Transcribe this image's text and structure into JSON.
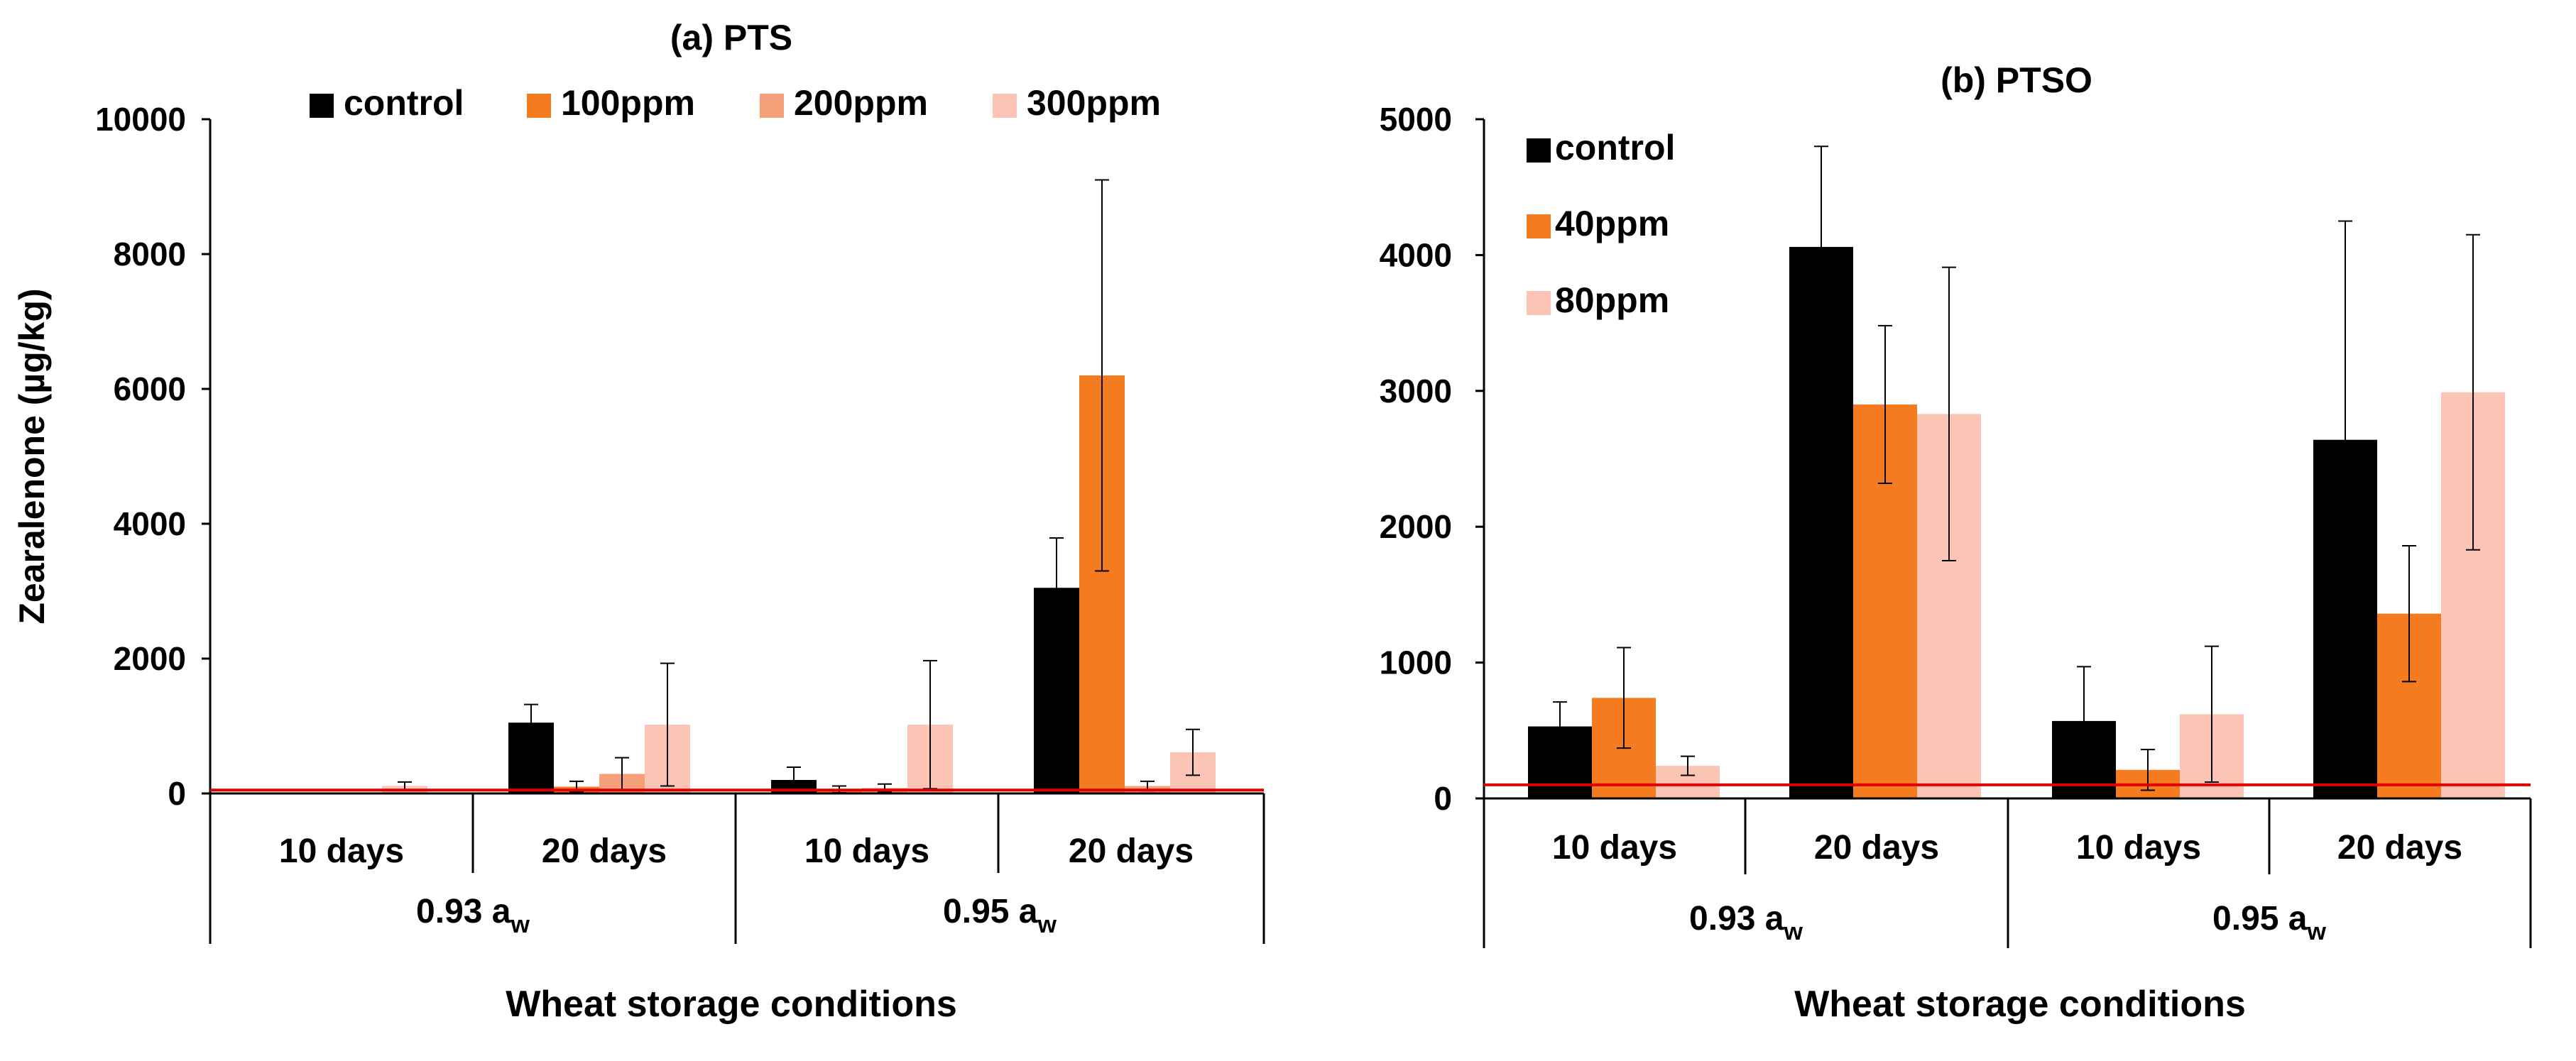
{
  "chart_data": [
    {
      "type": "bar",
      "title": "(a) PTS",
      "ylabel": "Zearalenone (µg/kg)",
      "xlabel": "Wheat storage conditions",
      "ylim": [
        0,
        10000
      ],
      "yticks": [
        "0",
        "2000",
        "4000",
        "6000",
        "8000",
        "10000"
      ],
      "categories": [
        "10 days",
        "20 days",
        "10 days",
        "20 days"
      ],
      "groups": [
        {
          "label": "0.93 a",
          "sub": "w"
        },
        {
          "label": "0.95 a",
          "sub": "w"
        }
      ],
      "threshold": 50,
      "threshold_color": "#e00000",
      "legend_position": "top",
      "series": [
        {
          "name": "control",
          "color": "#000000",
          "values": [
            0,
            1050,
            200,
            3050
          ],
          "errors": [
            0,
            270,
            190,
            740
          ]
        },
        {
          "name": "100ppm",
          "color": "#f57b20",
          "values": [
            0,
            100,
            60,
            6200
          ],
          "errors": [
            0,
            80,
            50,
            2900
          ]
        },
        {
          "name": "200ppm",
          "color": "#f4a07a",
          "values": [
            0,
            290,
            80,
            110
          ],
          "errors": [
            0,
            240,
            60,
            70
          ]
        },
        {
          "name": "300ppm",
          "color": "#fcc4b4",
          "values": [
            110,
            1020,
            1020,
            610
          ],
          "errors": [
            60,
            910,
            950,
            340
          ]
        }
      ]
    },
    {
      "type": "bar",
      "title": "(b) PTSO",
      "ylabel": "",
      "xlabel": "Wheat storage conditions",
      "ylim": [
        0,
        5000
      ],
      "yticks": [
        "0",
        "1000",
        "2000",
        "3000",
        "4000",
        "5000"
      ],
      "categories": [
        "10 days",
        "20 days",
        "10 days",
        "20 days"
      ],
      "groups": [
        {
          "label": "0.93 a",
          "sub": "w"
        },
        {
          "label": "0.95 a",
          "sub": "w"
        }
      ],
      "threshold": 100,
      "threshold_color": "#e00000",
      "legend_position": "top-left",
      "series": [
        {
          "name": "control",
          "color": "#000000",
          "values": [
            530,
            4060,
            570,
            2640
          ],
          "errors": [
            180,
            740,
            400,
            1610
          ]
        },
        {
          "name": "40ppm",
          "color": "#f57b20",
          "values": [
            740,
            2900,
            210,
            1360
          ],
          "errors": [
            370,
            580,
            150,
            500
          ]
        },
        {
          "name": "80ppm",
          "color": "#fcc4b4",
          "values": [
            240,
            2830,
            620,
            2990
          ],
          "errors": [
            70,
            1080,
            500,
            1160
          ]
        }
      ]
    }
  ]
}
